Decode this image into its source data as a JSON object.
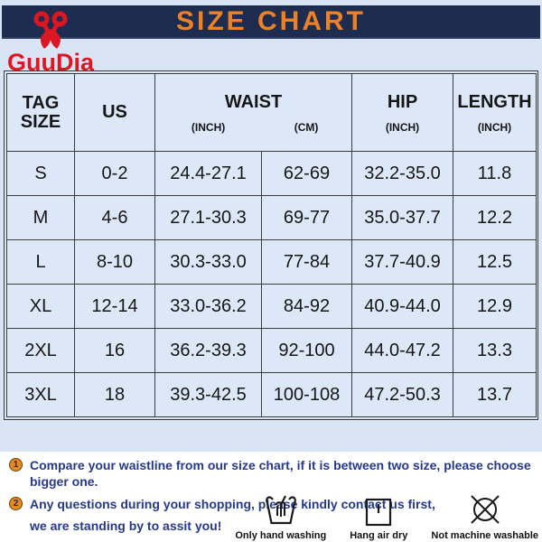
{
  "header": {
    "title": "SIZE CHART",
    "title_color": "#ef8125",
    "banner_color": "#1e2c50",
    "logo_text": "GuuDia",
    "logo_color": "#dd1722"
  },
  "table": {
    "header": {
      "tag_line1": "TAG",
      "tag_line2": "SIZE",
      "us": "US",
      "waist": "WAIST",
      "waist_inch_unit": "(INCH)",
      "waist_cm_unit": "(CM)",
      "hip": "HIP",
      "hip_unit": "(INCH)",
      "length": "LENGTH",
      "length_unit": "(INCH)"
    },
    "rows": [
      {
        "tag": "S",
        "us": "0-2",
        "waist_inch": "24.4-27.1",
        "waist_cm": "62-69",
        "hip": "32.2-35.0",
        "length": "11.8"
      },
      {
        "tag": "M",
        "us": "4-6",
        "waist_inch": "27.1-30.3",
        "waist_cm": "69-77",
        "hip": "35.0-37.7",
        "length": "12.2"
      },
      {
        "tag": "L",
        "us": "8-10",
        "waist_inch": "30.3-33.0",
        "waist_cm": "77-84",
        "hip": "37.7-40.9",
        "length": "12.5"
      },
      {
        "tag": "XL",
        "us": "12-14",
        "waist_inch": "33.0-36.2",
        "waist_cm": "84-92",
        "hip": "40.9-44.0",
        "length": "12.9"
      },
      {
        "tag": "2XL",
        "us": "16",
        "waist_inch": "36.2-39.3",
        "waist_cm": "92-100",
        "hip": "44.0-47.2",
        "length": "13.3"
      },
      {
        "tag": "3XL",
        "us": "18",
        "waist_inch": "39.3-42.5",
        "waist_cm": "100-108",
        "hip": "47.2-50.3",
        "length": "13.7"
      }
    ]
  },
  "notes": [
    {
      "num": "1",
      "lines": [
        "Compare your waistline from our size chart, if it is between two size, please choose bigger one."
      ]
    },
    {
      "num": "2",
      "lines": [
        "Any questions during your shopping, please kindly contact us first,",
        "we are standing by to assit you!"
      ]
    }
  ],
  "care_items": [
    {
      "icon": "hand-wash-icon",
      "label": "Only hand washing"
    },
    {
      "icon": "hang-dry-icon",
      "label": "Hang air dry"
    },
    {
      "icon": "no-machine-wash-icon",
      "label": "Not machine washable"
    }
  ],
  "colors": {
    "panel_background": "#d9e5f4",
    "cell_background": "#dce8f7",
    "table_border": "#3c3c3c",
    "note_text": "#26388e",
    "note_badge": "#e8891e"
  }
}
